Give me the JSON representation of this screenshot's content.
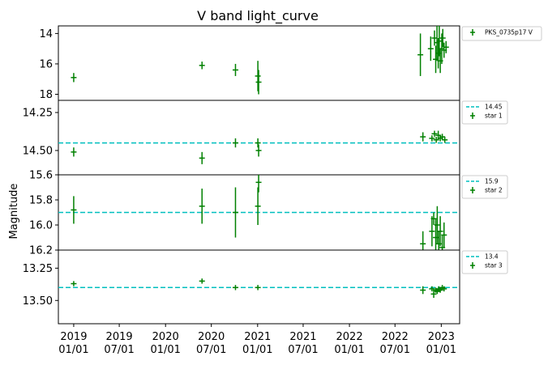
{
  "chart_data": {
    "type": "scatter",
    "title": "V band light_curve",
    "ylabel": "Magnitude",
    "x_ticks": [
      "2019\n01/01",
      "2019\n07/01",
      "2020\n01/01",
      "2020\n07/01",
      "2021\n01/01",
      "2021\n07/01",
      "2022\n01/01",
      "2022\n07/01",
      "2023\n01/01"
    ],
    "xlim": [
      "2018-11-01",
      "2023-03-15"
    ],
    "colors": {
      "points": "#008000",
      "reference_line": "#00bfbf",
      "frame": "#000000"
    },
    "panels": [
      {
        "name": "target",
        "ylim": [
          18.4,
          13.5
        ],
        "y_inverted": true,
        "y_ticks": [
          {
            "value": 14,
            "label": "14"
          },
          {
            "value": 16,
            "label": "16"
          },
          {
            "value": 18,
            "label": "18"
          }
        ],
        "legend": [
          {
            "marker": "plus",
            "label": "PKS_0735p17 V"
          }
        ],
        "points": [
          {
            "x": "2019-01-01",
            "y": 16.9,
            "err": 0.3
          },
          {
            "x": "2020-05-25",
            "y": 16.1,
            "err": 0.25
          },
          {
            "x": "2020-10-05",
            "y": 16.4,
            "err": 0.4
          },
          {
            "x": "2021-01-02",
            "y": 16.8,
            "err": 1.0
          },
          {
            "x": "2021-01-05",
            "y": 17.2,
            "err": 0.8
          },
          {
            "x": "2022-10-10",
            "y": 15.4,
            "err": 1.4
          },
          {
            "x": "2022-11-20",
            "y": 15.0,
            "err": 0.8
          },
          {
            "x": "2022-12-05",
            "y": 14.3,
            "err": 0.5
          },
          {
            "x": "2022-12-10",
            "y": 15.7,
            "err": 0.9
          },
          {
            "x": "2022-12-15",
            "y": 14.6,
            "err": 1.2
          },
          {
            "x": "2022-12-20",
            "y": 15.3,
            "err": 1.0
          },
          {
            "x": "2022-12-24",
            "y": 14.5,
            "err": 1.0
          },
          {
            "x": "2022-12-28",
            "y": 15.8,
            "err": 0.8
          },
          {
            "x": "2023-01-03",
            "y": 15.0,
            "err": 1.0
          },
          {
            "x": "2023-01-07",
            "y": 14.3,
            "err": 0.6
          },
          {
            "x": "2023-01-12",
            "y": 15.1,
            "err": 0.5
          },
          {
            "x": "2023-01-20",
            "y": 14.9,
            "err": 0.4
          }
        ]
      },
      {
        "name": "star 1",
        "ylim": [
          14.66,
          14.17
        ],
        "y_inverted": true,
        "y_ticks": [
          {
            "value": 14.25,
            "label": "14.25"
          },
          {
            "value": 14.5,
            "label": "14.50"
          }
        ],
        "reference": {
          "value": 14.45,
          "label": "14.45"
        },
        "legend": [
          {
            "marker": "dash",
            "label": "14.45"
          },
          {
            "marker": "plus",
            "label": "star 1"
          }
        ],
        "points": [
          {
            "x": "2019-01-01",
            "y": 14.51,
            "err": 0.03
          },
          {
            "x": "2020-05-25",
            "y": 14.55,
            "err": 0.04
          },
          {
            "x": "2020-10-05",
            "y": 14.45,
            "err": 0.03
          },
          {
            "x": "2021-01-02",
            "y": 14.45,
            "err": 0.03
          },
          {
            "x": "2021-01-05",
            "y": 14.5,
            "err": 0.04
          },
          {
            "x": "2022-10-20",
            "y": 14.41,
            "err": 0.03
          },
          {
            "x": "2022-11-25",
            "y": 14.42,
            "err": 0.02
          },
          {
            "x": "2022-12-05",
            "y": 14.39,
            "err": 0.02
          },
          {
            "x": "2022-12-12",
            "y": 14.43,
            "err": 0.02
          },
          {
            "x": "2022-12-20",
            "y": 14.4,
            "err": 0.03
          },
          {
            "x": "2022-12-28",
            "y": 14.42,
            "err": 0.02
          },
          {
            "x": "2023-01-05",
            "y": 14.41,
            "err": 0.02
          },
          {
            "x": "2023-01-15",
            "y": 14.43,
            "err": 0.02
          }
        ]
      },
      {
        "name": "star 2",
        "ylim": [
          16.2,
          15.6
        ],
        "y_inverted": true,
        "y_ticks": [
          {
            "value": 15.6,
            "label": "15.6"
          },
          {
            "value": 15.8,
            "label": "15.8"
          },
          {
            "value": 16.0,
            "label": "16.0"
          },
          {
            "value": 16.2,
            "label": "16.2"
          }
        ],
        "reference": {
          "value": 15.9,
          "label": "15.9"
        },
        "legend": [
          {
            "marker": "dash",
            "label": "15.9"
          },
          {
            "marker": "plus",
            "label": "star 2"
          }
        ],
        "points": [
          {
            "x": "2019-01-01",
            "y": 15.88,
            "err": 0.11
          },
          {
            "x": "2020-05-25",
            "y": 15.85,
            "err": 0.14
          },
          {
            "x": "2020-10-05",
            "y": 15.9,
            "err": 0.2
          },
          {
            "x": "2021-01-02",
            "y": 15.85,
            "err": 0.15
          },
          {
            "x": "2021-01-05",
            "y": 15.66,
            "err": 0.08
          },
          {
            "x": "2022-10-20",
            "y": 16.15,
            "err": 0.1
          },
          {
            "x": "2022-11-25",
            "y": 16.05,
            "err": 0.12
          },
          {
            "x": "2022-12-02",
            "y": 15.95,
            "err": 0.05
          },
          {
            "x": "2022-12-10",
            "y": 16.1,
            "err": 0.15
          },
          {
            "x": "2022-12-16",
            "y": 16.0,
            "err": 0.15
          },
          {
            "x": "2022-12-22",
            "y": 16.15,
            "err": 0.1
          },
          {
            "x": "2022-12-28",
            "y": 16.05,
            "err": 0.12
          },
          {
            "x": "2023-01-05",
            "y": 16.18,
            "err": 0.1
          },
          {
            "x": "2023-01-12",
            "y": 16.08,
            "err": 0.1
          }
        ]
      },
      {
        "name": "star 3",
        "ylim": [
          13.68,
          13.11
        ],
        "y_inverted": true,
        "y_ticks": [
          {
            "value": 13.25,
            "label": "13.25"
          },
          {
            "value": 13.5,
            "label": "13.50"
          }
        ],
        "reference": {
          "value": 13.4,
          "label": "13.4"
        },
        "legend": [
          {
            "marker": "dash",
            "label": "13.4"
          },
          {
            "marker": "plus",
            "label": "star 3"
          }
        ],
        "points": [
          {
            "x": "2019-01-01",
            "y": 13.37,
            "err": 0.02
          },
          {
            "x": "2020-05-25",
            "y": 13.35,
            "err": 0.02
          },
          {
            "x": "2020-10-05",
            "y": 13.4,
            "err": 0.02
          },
          {
            "x": "2021-01-02",
            "y": 13.4,
            "err": 0.02
          },
          {
            "x": "2022-10-20",
            "y": 13.42,
            "err": 0.03
          },
          {
            "x": "2022-11-25",
            "y": 13.41,
            "err": 0.02
          },
          {
            "x": "2022-12-02",
            "y": 13.45,
            "err": 0.03
          },
          {
            "x": "2022-12-10",
            "y": 13.42,
            "err": 0.02
          },
          {
            "x": "2022-12-16",
            "y": 13.43,
            "err": 0.02
          },
          {
            "x": "2022-12-22",
            "y": 13.41,
            "err": 0.02
          },
          {
            "x": "2022-12-28",
            "y": 13.42,
            "err": 0.02
          },
          {
            "x": "2023-01-05",
            "y": 13.4,
            "err": 0.02
          },
          {
            "x": "2023-01-12",
            "y": 13.41,
            "err": 0.02
          }
        ]
      }
    ]
  }
}
